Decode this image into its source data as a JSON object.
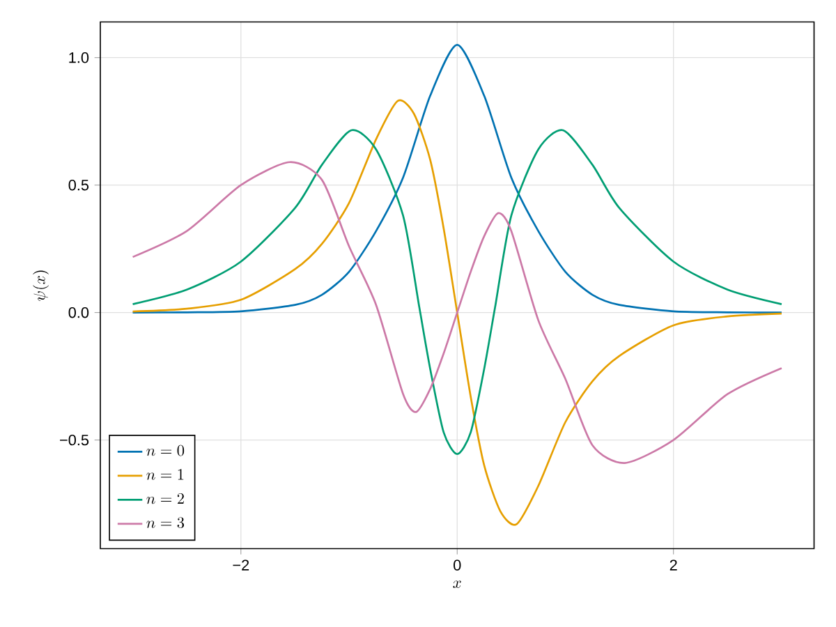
{
  "chart_data": {
    "type": "line",
    "xlabel": "x",
    "ylabel": "\\psi(x)",
    "xlim": [
      -3.3,
      3.3
    ],
    "ylim": [
      -0.926,
      1.14
    ],
    "xticks": [
      {
        "value": -2,
        "label": "−2"
      },
      {
        "value": 0,
        "label": "0"
      },
      {
        "value": 2,
        "label": "2"
      }
    ],
    "yticks": [
      {
        "value": -0.5,
        "label": "−0.5"
      },
      {
        "value": 0,
        "label": "0.0"
      },
      {
        "value": 0.5,
        "label": "0.5"
      },
      {
        "value": 1,
        "label": "1.0"
      }
    ],
    "grid": true,
    "legend": "bottom left",
    "line_style": "solid",
    "marker": "none",
    "series": [
      {
        "name": "n = 0",
        "color": "#0072b2",
        "x": [
          -3,
          -2.5,
          -2,
          -1.5,
          -1.25,
          -1,
          -0.75,
          -0.5,
          -0.25,
          0,
          0.25,
          0.5,
          0.75,
          1,
          1.25,
          1.5,
          2,
          2.5,
          3
        ],
        "values": [
          0,
          0.001,
          0.005,
          0.03,
          0.07,
          0.16,
          0.32,
          0.53,
          0.85,
          1.05,
          0.85,
          0.53,
          0.32,
          0.16,
          0.07,
          0.03,
          0.005,
          0.001,
          0
        ]
      },
      {
        "name": "n = 1",
        "color": "#e69f00",
        "x": [
          -3,
          -2.5,
          -2,
          -1.5,
          -1.25,
          -1,
          -0.75,
          -0.55,
          -0.4,
          -0.25,
          -0.125,
          0,
          0.125,
          0.25,
          0.4,
          0.55,
          0.75,
          1,
          1.25,
          1.5,
          2,
          2.5,
          3
        ],
        "values": [
          0.004,
          0.015,
          0.05,
          0.17,
          0.27,
          0.43,
          0.68,
          0.83,
          0.78,
          0.6,
          0.33,
          0,
          -0.33,
          -0.6,
          -0.78,
          -0.83,
          -0.68,
          -0.43,
          -0.27,
          -0.17,
          -0.05,
          -0.015,
          -0.004
        ]
      },
      {
        "name": "n = 2",
        "color": "#009e73",
        "x": [
          -3,
          -2.5,
          -2,
          -1.5,
          -1.25,
          -0.98,
          -0.75,
          -0.5,
          -0.35,
          -0.25,
          -0.125,
          0,
          0.125,
          0.25,
          0.35,
          0.5,
          0.75,
          0.98,
          1.25,
          1.5,
          2,
          2.5,
          3
        ],
        "values": [
          0.033,
          0.09,
          0.2,
          0.41,
          0.58,
          0.715,
          0.64,
          0.38,
          0.02,
          -0.22,
          -0.47,
          -0.555,
          -0.47,
          -0.22,
          0.02,
          0.38,
          0.64,
          0.715,
          0.58,
          0.41,
          0.2,
          0.09,
          0.033
        ]
      },
      {
        "name": "n = 3",
        "color": "#cc79a7",
        "x": [
          -3,
          -2.5,
          -2,
          -1.55,
          -1.25,
          -1,
          -0.75,
          -0.5,
          -0.38,
          -0.25,
          -0.125,
          0,
          0.125,
          0.25,
          0.38,
          0.5,
          0.75,
          1,
          1.25,
          1.55,
          2,
          2.5,
          3
        ],
        "values": [
          0.218,
          0.32,
          0.5,
          0.59,
          0.52,
          0.26,
          0.03,
          -0.32,
          -0.39,
          -0.3,
          -0.16,
          0,
          0.16,
          0.3,
          0.39,
          0.32,
          -0.03,
          -0.26,
          -0.52,
          -0.59,
          -0.5,
          -0.32,
          -0.218
        ]
      }
    ]
  }
}
